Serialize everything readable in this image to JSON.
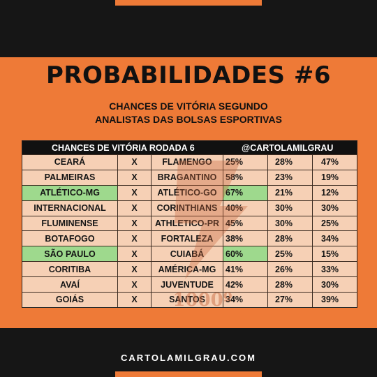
{
  "title": "PROBABILIDADES #6",
  "subtitle_line1": "CHANCES DE VITÓRIA SEGUNDO",
  "subtitle_line2": "ANALISTAS DAS BOLSAS ESPORTIVAS",
  "table": {
    "header_left": "CHANCES DE VITÓRIA RODADA 6",
    "header_right": "@CARTOLAMILGRAU",
    "rows": [
      {
        "home": "CEARÁ",
        "x": "X",
        "away": "FLAMENGO",
        "p_home": "25%",
        "p_draw": "28%",
        "p_away": "47%",
        "winner": "none"
      },
      {
        "home": "PALMEIRAS",
        "x": "X",
        "away": "BRAGANTINO",
        "p_home": "58%",
        "p_draw": "23%",
        "p_away": "19%",
        "winner": "none"
      },
      {
        "home": "ATLÉTICO-MG",
        "x": "X",
        "away": "ATLÉTICO-GO",
        "p_home": "67%",
        "p_draw": "21%",
        "p_away": "12%",
        "winner": "home"
      },
      {
        "home": "INTERNACIONAL",
        "x": "X",
        "away": "CORINTHIANS",
        "p_home": "40%",
        "p_draw": "30%",
        "p_away": "30%",
        "winner": "none"
      },
      {
        "home": "FLUMINENSE",
        "x": "X",
        "away": "ATHLETICO-PR",
        "p_home": "45%",
        "p_draw": "30%",
        "p_away": "25%",
        "winner": "none"
      },
      {
        "home": "BOTAFOGO",
        "x": "X",
        "away": "FORTALEZA",
        "p_home": "38%",
        "p_draw": "28%",
        "p_away": "34%",
        "winner": "none"
      },
      {
        "home": "SÃO PAULO",
        "x": "X",
        "away": "CUIABÁ",
        "p_home": "60%",
        "p_draw": "25%",
        "p_away": "15%",
        "winner": "home"
      },
      {
        "home": "CORITIBA",
        "x": "X",
        "away": "AMÉRICA-MG",
        "p_home": "41%",
        "p_draw": "26%",
        "p_away": "33%",
        "winner": "none"
      },
      {
        "home": "AVAÍ",
        "x": "X",
        "away": "JUVENTUDE",
        "p_home": "42%",
        "p_draw": "28%",
        "p_away": "30%",
        "winner": "none"
      },
      {
        "home": "GOIÁS",
        "x": "X",
        "away": "SANTOS",
        "p_home": "34%",
        "p_draw": "27%",
        "p_away": "39%",
        "winner": "none"
      }
    ]
  },
  "watermark_text": "1000º",
  "footer": "CARTOLAMILGRAU.COM",
  "colors": {
    "background": "#ee7a37",
    "dark": "#161616",
    "table_cell": "#f6d0b5",
    "winner_highlight": "#9ed98d"
  }
}
